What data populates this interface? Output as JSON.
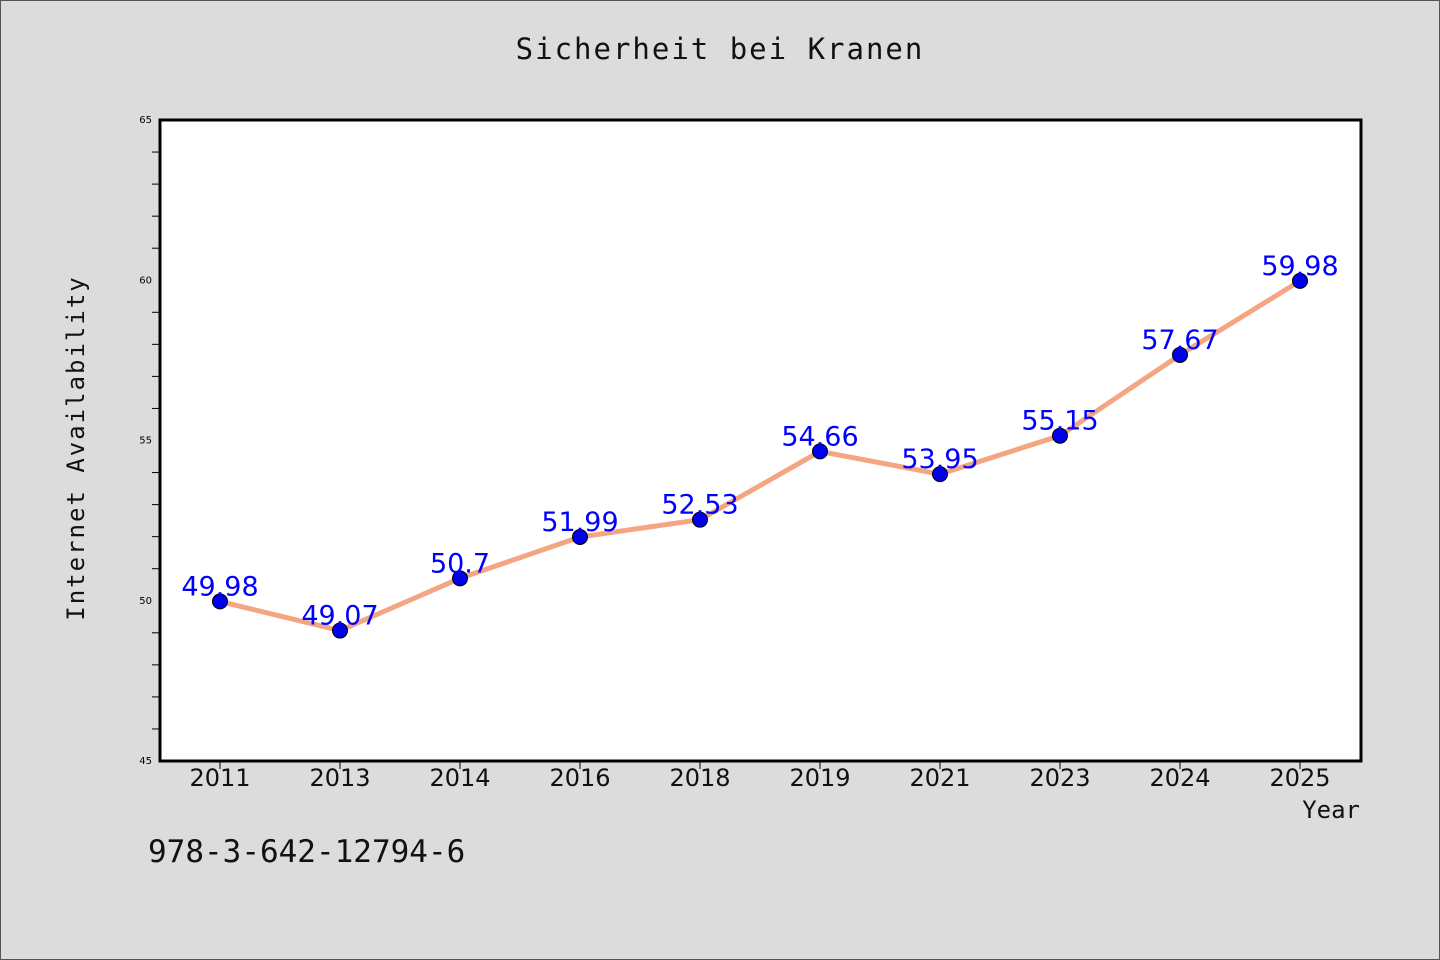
{
  "chart_data": {
    "type": "line",
    "title": "Sicherheit bei Kranen",
    "xlabel": "Year",
    "ylabel": "Internet Availability",
    "categories": [
      "2011",
      "2013",
      "2014",
      "2016",
      "2018",
      "2019",
      "2021",
      "2023",
      "2024",
      "2025"
    ],
    "series": [
      {
        "values": [
          49.98,
          49.07,
          50.7,
          51.99,
          52.53,
          54.66,
          53.95,
          55.15,
          57.67,
          59.98
        ],
        "labels": [
          "49.98",
          "49.07",
          "50.7",
          "51.99",
          "52.53",
          "54.66",
          "53.95",
          "55.15",
          "57.67",
          "59.98"
        ],
        "line_color": "#f4a582",
        "marker_color": "#0000ee",
        "label_color": "#0000ff"
      }
    ],
    "ylim": [
      45,
      65
    ],
    "yticks": [
      "45",
      "50",
      "55",
      "60",
      "65"
    ],
    "grid": false,
    "legend": "none"
  },
  "footnote": "978-3-642-12794-6",
  "colors": {
    "background": "#dcdcdc",
    "plot_background": "#ffffff",
    "axis": "#000000"
  }
}
